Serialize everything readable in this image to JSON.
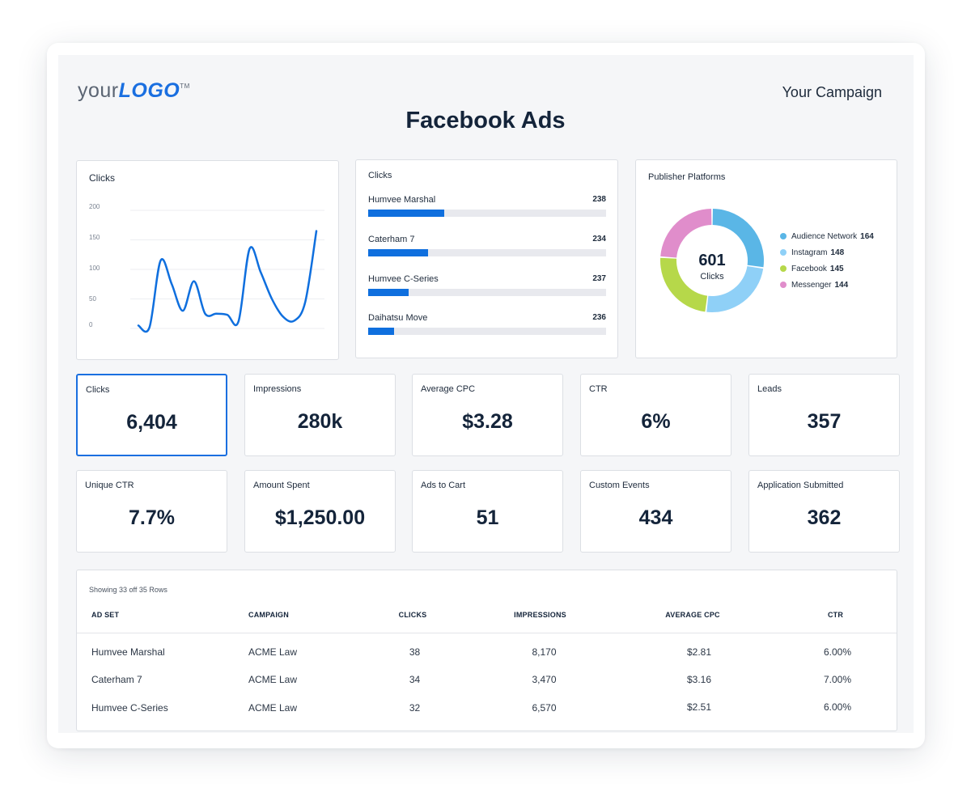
{
  "header": {
    "logo_text_light": "your",
    "logo_text_bold": "LOGO",
    "logo_tm": "TM",
    "campaign": "Your Campaign",
    "title": "Facebook Ads"
  },
  "colors": {
    "accent": "#1a6fe0",
    "bar": "#0f6fde",
    "donut": [
      "#5ab6e6",
      "#8fd0f7",
      "#b6d84a",
      "#e08dcb"
    ]
  },
  "line_card": {
    "title": "Clicks",
    "chart_data": {
      "type": "line",
      "title": "Clicks",
      "yticks": [
        200,
        150,
        100,
        50,
        0
      ],
      "ylim": [
        0,
        200
      ],
      "series": [
        {
          "values": [
            5,
            2,
            115,
            75,
            30,
            80,
            25,
            25,
            23,
            12,
            135,
            95,
            50,
            20,
            13,
            45,
            165
          ]
        }
      ]
    }
  },
  "bar_card": {
    "title": "Clicks",
    "chart_data": {
      "type": "bar",
      "categories": [
        "Humvee Marshal",
        "Caterham 7",
        "Humvee C-Series",
        "Daihatsu Move"
      ],
      "values": [
        238,
        234,
        237,
        236
      ],
      "fill_fractions": [
        0.32,
        0.25,
        0.17,
        0.11
      ]
    }
  },
  "donut_card": {
    "title": "Publisher Platforms",
    "center_value": "601",
    "center_label": "Clicks",
    "chart_data": {
      "type": "pie",
      "categories": [
        "Audience Network",
        "Instagram",
        "Facebook",
        "Messenger"
      ],
      "values": [
        164,
        148,
        145,
        144
      ]
    }
  },
  "kpis": [
    {
      "label": "Clicks",
      "value": "6,404"
    },
    {
      "label": "Impressions",
      "value": "280k"
    },
    {
      "label": "Average CPC",
      "value": "$3.28"
    },
    {
      "label": "CTR",
      "value": "6%"
    },
    {
      "label": "Leads",
      "value": "357"
    },
    {
      "label": "Unique CTR",
      "value": "7.7%"
    },
    {
      "label": "Amount Spent",
      "value": "$1,250.00"
    },
    {
      "label": "Ads to Cart",
      "value": "51"
    },
    {
      "label": "Custom Events",
      "value": "434"
    },
    {
      "label": "Application Submitted",
      "value": "362"
    }
  ],
  "table": {
    "caption": "Showing 33 off 35 Rows",
    "headers": [
      "AD SET",
      "CAMPAIGN",
      "CLICKS",
      "IMPRESSIONS",
      "AVERAGE CPC",
      "CTR"
    ],
    "rows": [
      [
        "Humvee Marshal",
        "ACME Law",
        "38",
        "8,170",
        "$2.81",
        "6.00%"
      ],
      [
        "Caterham 7",
        "ACME Law",
        "34",
        "3,470",
        "$3.16",
        "7.00%"
      ],
      [
        "Humvee C-Series",
        "ACME Law",
        "32",
        "6,570",
        "$2.51",
        "6.00%"
      ]
    ]
  }
}
